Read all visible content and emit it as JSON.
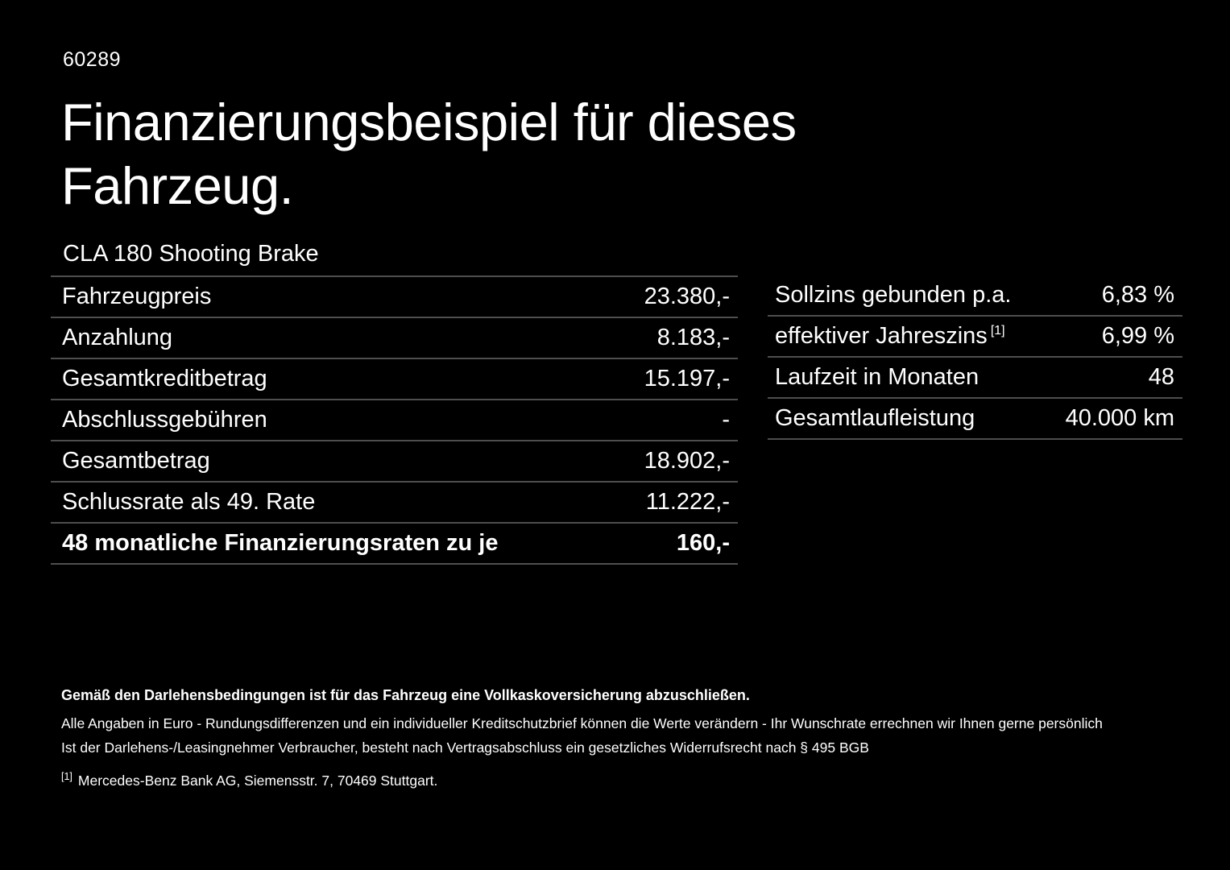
{
  "page": {
    "doc_number": "60289",
    "title": "Finanzierungsbeispiel für dieses Fahrzeug.",
    "vehicle_model": "CLA 180 Shooting Brake"
  },
  "finance_table": {
    "rows": [
      {
        "label": "Fahrzeugpreis",
        "value": "23.380,-"
      },
      {
        "label": "Anzahlung",
        "value": "8.183,-"
      },
      {
        "label": "Gesamtkreditbetrag",
        "value": "15.197,-"
      },
      {
        "label": "Abschlussgebühren",
        "value": "-"
      },
      {
        "label": "Gesamtbetrag",
        "value": "18.902,-"
      },
      {
        "label": "Schlussrate als 49. Rate",
        "value": "11.222,-"
      },
      {
        "label": "48 monatliche Finanzierungsraten zu je",
        "value": "160,-"
      }
    ]
  },
  "conditions_table": {
    "rows": [
      {
        "label": "Sollzins gebunden p.a.",
        "footnote": "",
        "value": "6,83 %"
      },
      {
        "label": "effektiver Jahreszins",
        "footnote": "[1]",
        "value": "6,99 %"
      },
      {
        "label": "Laufzeit in Monaten",
        "footnote": "",
        "value": "48"
      },
      {
        "label": "Gesamtlaufleistung",
        "footnote": "",
        "value": "40.000 km"
      }
    ]
  },
  "disclaimer": {
    "insurance_note": "Gemäß den Darlehensbedingungen ist für das Fahrzeug eine Vollkaskoversicherung abzuschließen.",
    "euro_note": "Alle Angaben in Euro - Rundungsdifferenzen und ein individueller Kreditschutzbrief können die Werte verändern - Ihr Wunschrate errechnen wir Ihnen gerne persönlich",
    "withdrawal_note": "Ist der Darlehens-/Leasingnehmer Verbraucher, besteht nach Vertragsabschluss ein gesetzliches Widerrufsrecht nach § 495 BGB",
    "footnote_marker": "[1]",
    "footnote_text": "Mercedes-Benz Bank AG, Siemensstr. 7, 70469 Stuttgart."
  },
  "colors": {
    "background": "#000000",
    "text": "#ffffff",
    "separator": "#4e4e4e"
  }
}
